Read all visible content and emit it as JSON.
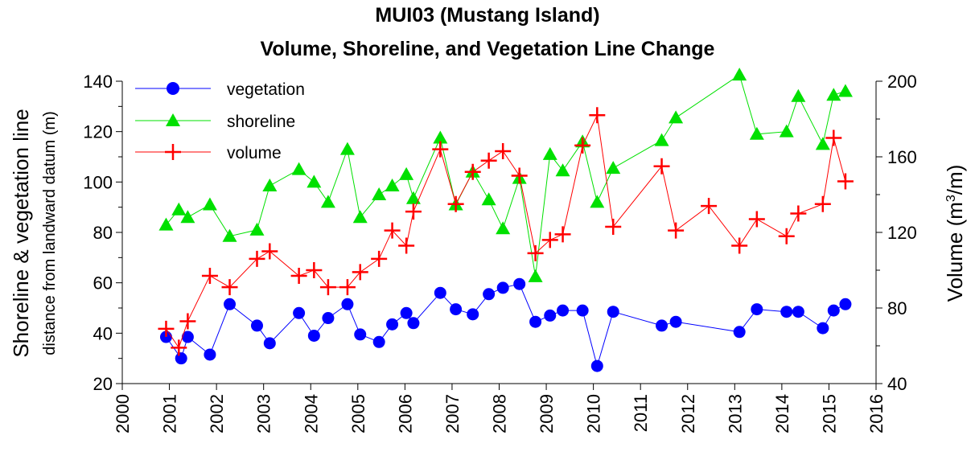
{
  "chart_data": {
    "type": "line",
    "title": "MUI03 (Mustang Island)",
    "subtitle": "Volume, Shoreline, and Vegetation Line Change",
    "ylabel": "Shoreline & vegetation line",
    "ylabel_sub": "distance from landward datum (m)",
    "y2label": "Volume (m",
    "y2label_sup": "3",
    "y2label_end": "/m)",
    "xlim": [
      2000,
      2016
    ],
    "ylim": [
      20,
      140
    ],
    "y2lim": [
      40,
      200
    ],
    "x_ticks": [
      "2000",
      "2001",
      "2002",
      "2003",
      "2004",
      "2005",
      "2006",
      "2007",
      "2008",
      "2009",
      "2010",
      "2011",
      "2012",
      "2013",
      "2014",
      "2015",
      "2016"
    ],
    "y_ticks": [
      "20",
      "40",
      "60",
      "80",
      "100",
      "120",
      "140"
    ],
    "y2_ticks": [
      "40",
      "80",
      "120",
      "160",
      "200"
    ],
    "legend_position": "top-left",
    "grid": false,
    "series": [
      {
        "name": "vegetation",
        "color": "#0000ff",
        "marker": "circle",
        "axis": "left",
        "x": [
          2000.93,
          2001.25,
          2001.39,
          2001.86,
          2002.28,
          2002.86,
          2003.13,
          2003.75,
          2004.07,
          2004.37,
          2004.78,
          2005.05,
          2005.45,
          2005.73,
          2006.03,
          2006.18,
          2006.75,
          2007.08,
          2007.44,
          2007.78,
          2008.08,
          2008.43,
          2008.77,
          2009.08,
          2009.35,
          2009.77,
          2010.08,
          2010.42,
          2011.45,
          2011.75,
          2013.1,
          2013.47,
          2014.1,
          2014.35,
          2014.87,
          2015.1,
          2015.35
        ],
        "y": [
          38.5,
          30,
          38.5,
          31.5,
          51.5,
          43,
          36,
          48,
          39,
          46,
          51.5,
          39.5,
          36.5,
          43.5,
          48,
          44,
          56,
          49.5,
          47.5,
          55.5,
          58,
          59.5,
          44.5,
          47,
          49,
          49,
          27,
          48.5,
          43,
          44.5,
          40.5,
          49.5,
          48.5,
          48.5,
          42,
          49,
          51.5
        ]
      },
      {
        "name": "shoreline",
        "color": "#00e000",
        "marker": "triangle",
        "axis": "left",
        "x": [
          2000.93,
          2001.2,
          2001.39,
          2001.86,
          2002.28,
          2002.86,
          2003.13,
          2003.75,
          2004.07,
          2004.37,
          2004.78,
          2005.05,
          2005.45,
          2005.73,
          2006.03,
          2006.18,
          2006.75,
          2007.08,
          2007.44,
          2007.78,
          2008.08,
          2008.43,
          2008.77,
          2009.08,
          2009.35,
          2009.77,
          2010.08,
          2010.42,
          2011.45,
          2011.75,
          2013.1,
          2013.47,
          2014.1,
          2014.35,
          2014.87,
          2015.1,
          2015.35
        ],
        "y": [
          83,
          89,
          86,
          91,
          78.5,
          81,
          98.5,
          105,
          100,
          92,
          113,
          86,
          95,
          98.5,
          103,
          93.5,
          117.5,
          91,
          104,
          93,
          81.5,
          101.5,
          62.5,
          111,
          104.5,
          116,
          92,
          105.5,
          116.5,
          125.5,
          142.5,
          119,
          120,
          134,
          115,
          134.5,
          136
        ]
      },
      {
        "name": "volume",
        "color": "#ff0000",
        "marker": "plus",
        "axis": "right",
        "x": [
          2000.93,
          2001.2,
          2001.39,
          2001.86,
          2002.28,
          2002.86,
          2003.13,
          2003.75,
          2004.07,
          2004.37,
          2004.78,
          2005.05,
          2005.45,
          2005.73,
          2006.03,
          2006.18,
          2006.75,
          2007.08,
          2007.44,
          2007.78,
          2008.08,
          2008.43,
          2008.77,
          2009.08,
          2009.35,
          2009.77,
          2010.08,
          2010.42,
          2011.45,
          2011.75,
          2012.45,
          2013.1,
          2013.47,
          2014.1,
          2014.35,
          2014.87,
          2015.1,
          2015.35
        ],
        "y": [
          69,
          59,
          73,
          97,
          91,
          106,
          110,
          97,
          100,
          91,
          91,
          99,
          106,
          121,
          113,
          131,
          164,
          135,
          152,
          158,
          163,
          150,
          109,
          116,
          119,
          166,
          182,
          123,
          155,
          121,
          134,
          113,
          127,
          118,
          130,
          135,
          170,
          147
        ]
      }
    ]
  }
}
